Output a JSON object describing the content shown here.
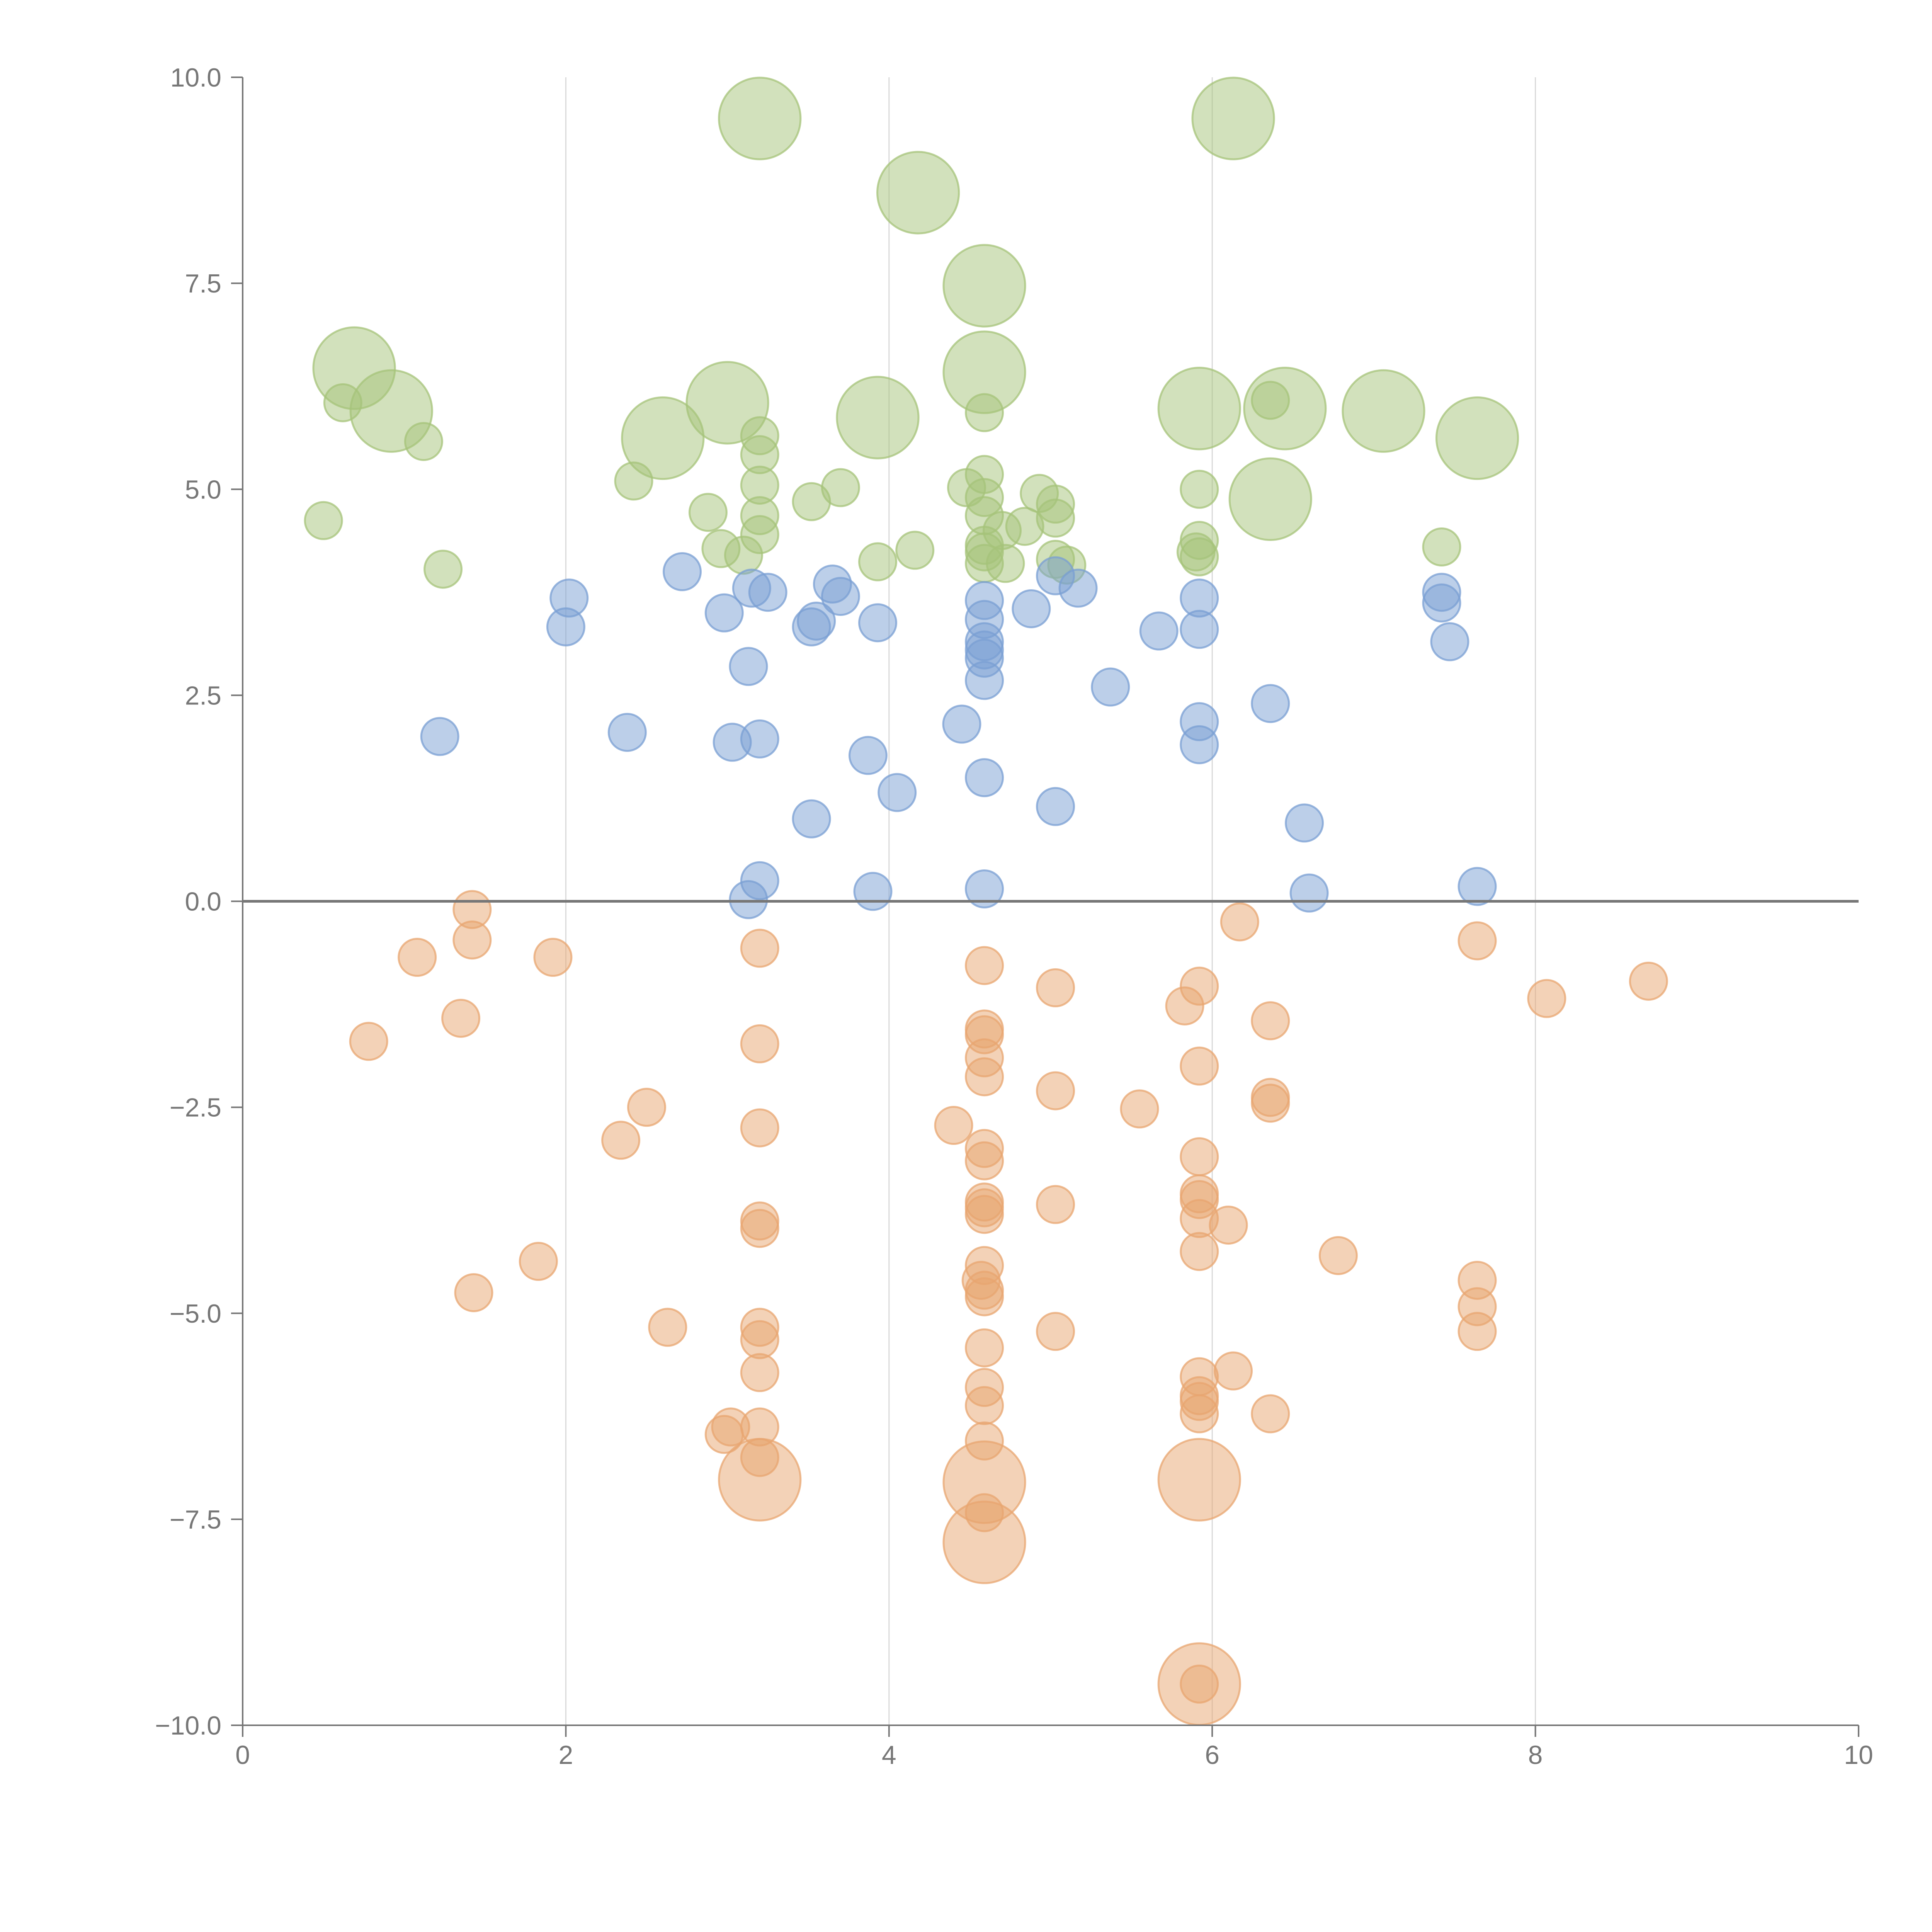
{
  "chart_data": {
    "type": "scatter",
    "title": "",
    "xlabel": "",
    "ylabel": "",
    "xlim": [
      0,
      10
    ],
    "ylim": [
      -10,
      10
    ],
    "x_ticks": [
      "0",
      "2",
      "4",
      "6",
      "8",
      "10"
    ],
    "y_ticks": [
      "10.0",
      "7.5",
      "5.0",
      "2.5",
      "0.0",
      "−2.5",
      "−5.0",
      "−7.5",
      "−10.0"
    ],
    "x_grid": true,
    "y_grid": false,
    "reference_line_y": 0,
    "legend": "none",
    "series": [
      {
        "color": "#a5c37a",
        "points": [
          {
            "x": 3.2,
            "y": 9.5,
            "size": 2.2
          },
          {
            "x": 6.13,
            "y": 9.5,
            "size": 2.2
          },
          {
            "x": 4.18,
            "y": 8.6,
            "size": 2.2
          },
          {
            "x": 4.59,
            "y": 7.47,
            "size": 2.2
          },
          {
            "x": 0.69,
            "y": 6.47,
            "size": 2.2
          },
          {
            "x": 4.59,
            "y": 6.42,
            "size": 2.2
          },
          {
            "x": 0.62,
            "y": 6.05,
            "size": 1
          },
          {
            "x": 6.36,
            "y": 6.08,
            "size": 1
          },
          {
            "x": 3.0,
            "y": 6.05,
            "size": 2.2
          },
          {
            "x": 5.92,
            "y": 5.98,
            "size": 2.2
          },
          {
            "x": 6.45,
            "y": 5.98,
            "size": 2.2
          },
          {
            "x": 0.92,
            "y": 5.95,
            "size": 2.2
          },
          {
            "x": 7.06,
            "y": 5.95,
            "size": 2.2
          },
          {
            "x": 4.59,
            "y": 5.93,
            "size": 1
          },
          {
            "x": 3.93,
            "y": 5.87,
            "size": 2.2
          },
          {
            "x": 3.2,
            "y": 5.65,
            "size": 1
          },
          {
            "x": 7.64,
            "y": 5.62,
            "size": 2.2
          },
          {
            "x": 2.6,
            "y": 5.62,
            "size": 2.2
          },
          {
            "x": 1.12,
            "y": 5.58,
            "size": 1
          },
          {
            "x": 3.2,
            "y": 5.42,
            "size": 1
          },
          {
            "x": 4.59,
            "y": 5.18,
            "size": 1
          },
          {
            "x": 2.42,
            "y": 5.1,
            "size": 1
          },
          {
            "x": 3.2,
            "y": 5.05,
            "size": 1
          },
          {
            "x": 3.7,
            "y": 5.02,
            "size": 1
          },
          {
            "x": 4.48,
            "y": 5.02,
            "size": 1
          },
          {
            "x": 5.92,
            "y": 5.0,
            "size": 1
          },
          {
            "x": 4.93,
            "y": 4.95,
            "size": 1
          },
          {
            "x": 4.59,
            "y": 4.9,
            "size": 1
          },
          {
            "x": 6.36,
            "y": 4.88,
            "size": 2.2
          },
          {
            "x": 3.52,
            "y": 4.85,
            "size": 1
          },
          {
            "x": 5.03,
            "y": 4.82,
            "size": 1
          },
          {
            "x": 2.88,
            "y": 4.72,
            "size": 1
          },
          {
            "x": 3.2,
            "y": 4.68,
            "size": 1
          },
          {
            "x": 4.59,
            "y": 4.68,
            "size": 1
          },
          {
            "x": 5.03,
            "y": 4.65,
            "size": 1
          },
          {
            "x": 0.5,
            "y": 4.62,
            "size": 1
          },
          {
            "x": 4.84,
            "y": 4.55,
            "size": 1
          },
          {
            "x": 4.7,
            "y": 4.5,
            "size": 1
          },
          {
            "x": 3.2,
            "y": 4.45,
            "size": 1
          },
          {
            "x": 5.92,
            "y": 4.38,
            "size": 1
          },
          {
            "x": 4.59,
            "y": 4.32,
            "size": 1
          },
          {
            "x": 7.42,
            "y": 4.3,
            "size": 1
          },
          {
            "x": 2.96,
            "y": 4.28,
            "size": 1
          },
          {
            "x": 4.16,
            "y": 4.26,
            "size": 1
          },
          {
            "x": 4.59,
            "y": 4.24,
            "size": 1
          },
          {
            "x": 5.9,
            "y": 4.24,
            "size": 1
          },
          {
            "x": 3.1,
            "y": 4.2,
            "size": 1
          },
          {
            "x": 5.92,
            "y": 4.18,
            "size": 1
          },
          {
            "x": 5.03,
            "y": 4.15,
            "size": 1
          },
          {
            "x": 3.93,
            "y": 4.12,
            "size": 1
          },
          {
            "x": 4.59,
            "y": 4.1,
            "size": 1
          },
          {
            "x": 4.72,
            "y": 4.1,
            "size": 1
          },
          {
            "x": 5.1,
            "y": 4.08,
            "size": 1
          },
          {
            "x": 1.24,
            "y": 4.03,
            "size": 1
          }
        ]
      },
      {
        "color": "#7a9fd3",
        "points": [
          {
            "x": 2.72,
            "y": 4.0,
            "size": 1
          },
          {
            "x": 5.03,
            "y": 3.95,
            "size": 1
          },
          {
            "x": 3.65,
            "y": 3.85,
            "size": 1
          },
          {
            "x": 3.15,
            "y": 3.8,
            "size": 1
          },
          {
            "x": 5.17,
            "y": 3.8,
            "size": 1
          },
          {
            "x": 3.25,
            "y": 3.75,
            "size": 1
          },
          {
            "x": 7.42,
            "y": 3.75,
            "size": 1
          },
          {
            "x": 3.7,
            "y": 3.7,
            "size": 1
          },
          {
            "x": 2.02,
            "y": 3.68,
            "size": 1
          },
          {
            "x": 5.92,
            "y": 3.68,
            "size": 1
          },
          {
            "x": 4.59,
            "y": 3.65,
            "size": 1
          },
          {
            "x": 7.42,
            "y": 3.62,
            "size": 1
          },
          {
            "x": 4.88,
            "y": 3.55,
            "size": 1
          },
          {
            "x": 2.98,
            "y": 3.5,
            "size": 1
          },
          {
            "x": 4.59,
            "y": 3.42,
            "size": 1
          },
          {
            "x": 3.55,
            "y": 3.4,
            "size": 1
          },
          {
            "x": 3.93,
            "y": 3.38,
            "size": 1
          },
          {
            "x": 2.0,
            "y": 3.33,
            "size": 1
          },
          {
            "x": 3.52,
            "y": 3.33,
            "size": 1
          },
          {
            "x": 5.92,
            "y": 3.3,
            "size": 1
          },
          {
            "x": 5.67,
            "y": 3.28,
            "size": 1
          },
          {
            "x": 4.59,
            "y": 3.15,
            "size": 1
          },
          {
            "x": 7.47,
            "y": 3.15,
            "size": 1
          },
          {
            "x": 4.59,
            "y": 3.05,
            "size": 1
          },
          {
            "x": 4.59,
            "y": 2.95,
            "size": 1
          },
          {
            "x": 3.13,
            "y": 2.85,
            "size": 1
          },
          {
            "x": 4.59,
            "y": 2.68,
            "size": 1
          },
          {
            "x": 5.37,
            "y": 2.6,
            "size": 1
          },
          {
            "x": 6.36,
            "y": 2.4,
            "size": 1
          },
          {
            "x": 5.92,
            "y": 2.18,
            "size": 1
          },
          {
            "x": 4.45,
            "y": 2.15,
            "size": 1
          },
          {
            "x": 2.38,
            "y": 2.05,
            "size": 1
          },
          {
            "x": 1.22,
            "y": 2.0,
            "size": 1
          },
          {
            "x": 3.2,
            "y": 1.97,
            "size": 1
          },
          {
            "x": 3.03,
            "y": 1.93,
            "size": 1
          },
          {
            "x": 5.92,
            "y": 1.9,
            "size": 1
          },
          {
            "x": 3.87,
            "y": 1.77,
            "size": 1
          },
          {
            "x": 4.59,
            "y": 1.5,
            "size": 1
          },
          {
            "x": 4.05,
            "y": 1.32,
            "size": 1
          },
          {
            "x": 5.03,
            "y": 1.15,
            "size": 1
          },
          {
            "x": 3.52,
            "y": 1.0,
            "size": 1
          },
          {
            "x": 6.57,
            "y": 0.95,
            "size": 1
          },
          {
            "x": 3.2,
            "y": 0.25,
            "size": 1
          },
          {
            "x": 7.64,
            "y": 0.18,
            "size": 1
          },
          {
            "x": 4.59,
            "y": 0.15,
            "size": 1
          },
          {
            "x": 3.9,
            "y": 0.12,
            "size": 1
          },
          {
            "x": 6.6,
            "y": 0.1,
            "size": 1
          },
          {
            "x": 3.13,
            "y": 0.02,
            "size": 1
          }
        ]
      },
      {
        "color": "#e8a570",
        "points": [
          {
            "x": 1.42,
            "y": -0.1,
            "size": 1
          },
          {
            "x": 6.17,
            "y": -0.25,
            "size": 1
          },
          {
            "x": 1.42,
            "y": -0.47,
            "size": 1
          },
          {
            "x": 7.64,
            "y": -0.48,
            "size": 1
          },
          {
            "x": 3.2,
            "y": -0.57,
            "size": 1
          },
          {
            "x": 1.08,
            "y": -0.68,
            "size": 1
          },
          {
            "x": 1.92,
            "y": -0.68,
            "size": 1
          },
          {
            "x": 4.59,
            "y": -0.78,
            "size": 1
          },
          {
            "x": 8.7,
            "y": -0.97,
            "size": 1
          },
          {
            "x": 5.92,
            "y": -1.03,
            "size": 1
          },
          {
            "x": 5.03,
            "y": -1.05,
            "size": 1
          },
          {
            "x": 8.07,
            "y": -1.18,
            "size": 1
          },
          {
            "x": 5.83,
            "y": -1.27,
            "size": 1
          },
          {
            "x": 1.35,
            "y": -1.42,
            "size": 1
          },
          {
            "x": 6.36,
            "y": -1.45,
            "size": 1
          },
          {
            "x": 4.59,
            "y": -1.55,
            "size": 1
          },
          {
            "x": 4.59,
            "y": -1.62,
            "size": 1
          },
          {
            "x": 0.78,
            "y": -1.7,
            "size": 1
          },
          {
            "x": 3.2,
            "y": -1.73,
            "size": 1
          },
          {
            "x": 4.59,
            "y": -1.9,
            "size": 1
          },
          {
            "x": 5.92,
            "y": -2.0,
            "size": 1
          },
          {
            "x": 4.59,
            "y": -2.13,
            "size": 1
          },
          {
            "x": 5.03,
            "y": -2.3,
            "size": 1
          },
          {
            "x": 6.36,
            "y": -2.38,
            "size": 1
          },
          {
            "x": 6.36,
            "y": -2.45,
            "size": 1
          },
          {
            "x": 2.5,
            "y": -2.5,
            "size": 1
          },
          {
            "x": 5.55,
            "y": -2.52,
            "size": 1
          },
          {
            "x": 4.4,
            "y": -2.72,
            "size": 1
          },
          {
            "x": 3.2,
            "y": -2.75,
            "size": 1
          },
          {
            "x": 2.34,
            "y": -2.9,
            "size": 1
          },
          {
            "x": 4.59,
            "y": -3.0,
            "size": 1
          },
          {
            "x": 5.92,
            "y": -3.1,
            "size": 1
          },
          {
            "x": 4.59,
            "y": -3.15,
            "size": 1
          },
          {
            "x": 5.92,
            "y": -3.55,
            "size": 1
          },
          {
            "x": 5.92,
            "y": -3.62,
            "size": 1
          },
          {
            "x": 4.59,
            "y": -3.65,
            "size": 1
          },
          {
            "x": 5.03,
            "y": -3.68,
            "size": 1
          },
          {
            "x": 4.59,
            "y": -3.72,
            "size": 1
          },
          {
            "x": 4.59,
            "y": -3.8,
            "size": 1
          },
          {
            "x": 5.92,
            "y": -3.85,
            "size": 1
          },
          {
            "x": 3.2,
            "y": -3.88,
            "size": 1
          },
          {
            "x": 6.1,
            "y": -3.93,
            "size": 1
          },
          {
            "x": 3.2,
            "y": -3.97,
            "size": 1
          },
          {
            "x": 5.92,
            "y": -4.25,
            "size": 1
          },
          {
            "x": 6.78,
            "y": -4.3,
            "size": 1
          },
          {
            "x": 1.83,
            "y": -4.37,
            "size": 1
          },
          {
            "x": 4.59,
            "y": -4.42,
            "size": 1
          },
          {
            "x": 7.64,
            "y": -4.6,
            "size": 1
          },
          {
            "x": 4.57,
            "y": -4.6,
            "size": 1
          },
          {
            "x": 4.59,
            "y": -4.72,
            "size": 1
          },
          {
            "x": 1.43,
            "y": -4.75,
            "size": 1
          },
          {
            "x": 4.59,
            "y": -4.8,
            "size": 1
          },
          {
            "x": 7.64,
            "y": -4.92,
            "size": 1
          },
          {
            "x": 2.63,
            "y": -5.17,
            "size": 1
          },
          {
            "x": 3.2,
            "y": -5.17,
            "size": 1
          },
          {
            "x": 7.64,
            "y": -5.22,
            "size": 1
          },
          {
            "x": 5.03,
            "y": -5.22,
            "size": 1
          },
          {
            "x": 3.2,
            "y": -5.32,
            "size": 1
          },
          {
            "x": 4.59,
            "y": -5.42,
            "size": 1
          },
          {
            "x": 6.13,
            "y": -5.7,
            "size": 1
          },
          {
            "x": 3.2,
            "y": -5.72,
            "size": 1
          },
          {
            "x": 5.92,
            "y": -5.77,
            "size": 1
          },
          {
            "x": 4.59,
            "y": -5.9,
            "size": 1
          },
          {
            "x": 5.92,
            "y": -6.0,
            "size": 1
          },
          {
            "x": 5.92,
            "y": -6.07,
            "size": 1
          },
          {
            "x": 4.59,
            "y": -6.12,
            "size": 1
          },
          {
            "x": 5.92,
            "y": -6.22,
            "size": 1
          },
          {
            "x": 6.36,
            "y": -6.22,
            "size": 1
          },
          {
            "x": 3.02,
            "y": -6.38,
            "size": 1
          },
          {
            "x": 3.2,
            "y": -6.38,
            "size": 1
          },
          {
            "x": 2.98,
            "y": -6.47,
            "size": 1
          },
          {
            "x": 4.59,
            "y": -6.55,
            "size": 1
          },
          {
            "x": 3.2,
            "y": -6.75,
            "size": 1
          },
          {
            "x": 3.2,
            "y": -7.02,
            "size": 2.2
          },
          {
            "x": 5.92,
            "y": -7.02,
            "size": 2.2
          },
          {
            "x": 4.59,
            "y": -7.05,
            "size": 2.2
          },
          {
            "x": 4.59,
            "y": -7.42,
            "size": 1
          },
          {
            "x": 4.59,
            "y": -7.78,
            "size": 2.2
          },
          {
            "x": 5.92,
            "y": -9.5,
            "size": 2.2
          },
          {
            "x": 5.92,
            "y": -9.5,
            "size": 1
          }
        ]
      }
    ]
  }
}
